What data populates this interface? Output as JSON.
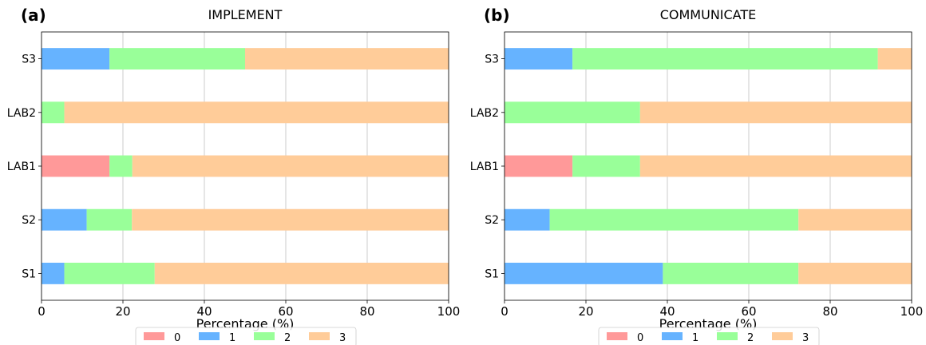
{
  "chart_data": [
    {
      "type": "bar",
      "orientation": "horizontal",
      "stacked": true,
      "panel_label": "(a)",
      "title": "IMPLEMENT",
      "xlabel": "Percentage (%)",
      "ylabel": "",
      "xlim": [
        0,
        100
      ],
      "xticks": [
        "0",
        "20",
        "40",
        "60",
        "80",
        "100"
      ],
      "grid": "vertical",
      "legend_position": "bottom",
      "categories": [
        "S1",
        "S2",
        "LAB1",
        "LAB2",
        "S3"
      ],
      "series": [
        {
          "name": "0",
          "color": "#ff9999",
          "values": [
            0,
            0,
            16.7,
            0,
            0
          ]
        },
        {
          "name": "1",
          "color": "#66b3ff",
          "values": [
            5.6,
            11.1,
            0,
            0,
            16.7
          ]
        },
        {
          "name": "2",
          "color": "#99ff99",
          "values": [
            22.2,
            11.1,
            5.6,
            5.6,
            33.3
          ]
        },
        {
          "name": "3",
          "color": "#ffcc99",
          "values": [
            72.2,
            77.8,
            77.7,
            94.4,
            50.0
          ]
        }
      ]
    },
    {
      "type": "bar",
      "orientation": "horizontal",
      "stacked": true,
      "panel_label": "(b)",
      "title": "COMMUNICATE",
      "xlabel": "Percentage (%)",
      "ylabel": "",
      "xlim": [
        0,
        100
      ],
      "xticks": [
        "0",
        "20",
        "40",
        "60",
        "80",
        "100"
      ],
      "grid": "vertical",
      "legend_position": "bottom",
      "categories": [
        "S1",
        "S2",
        "LAB1",
        "LAB2",
        "S3"
      ],
      "series": [
        {
          "name": "0",
          "color": "#ff9999",
          "values": [
            0,
            0,
            16.7,
            0,
            0
          ]
        },
        {
          "name": "1",
          "color": "#66b3ff",
          "values": [
            38.9,
            11.1,
            0,
            0,
            16.7
          ]
        },
        {
          "name": "2",
          "color": "#99ff99",
          "values": [
            33.3,
            61.1,
            16.6,
            33.3,
            75.0
          ]
        },
        {
          "name": "3",
          "color": "#ffcc99",
          "values": [
            27.8,
            27.8,
            66.7,
            66.7,
            8.3
          ]
        }
      ]
    }
  ]
}
